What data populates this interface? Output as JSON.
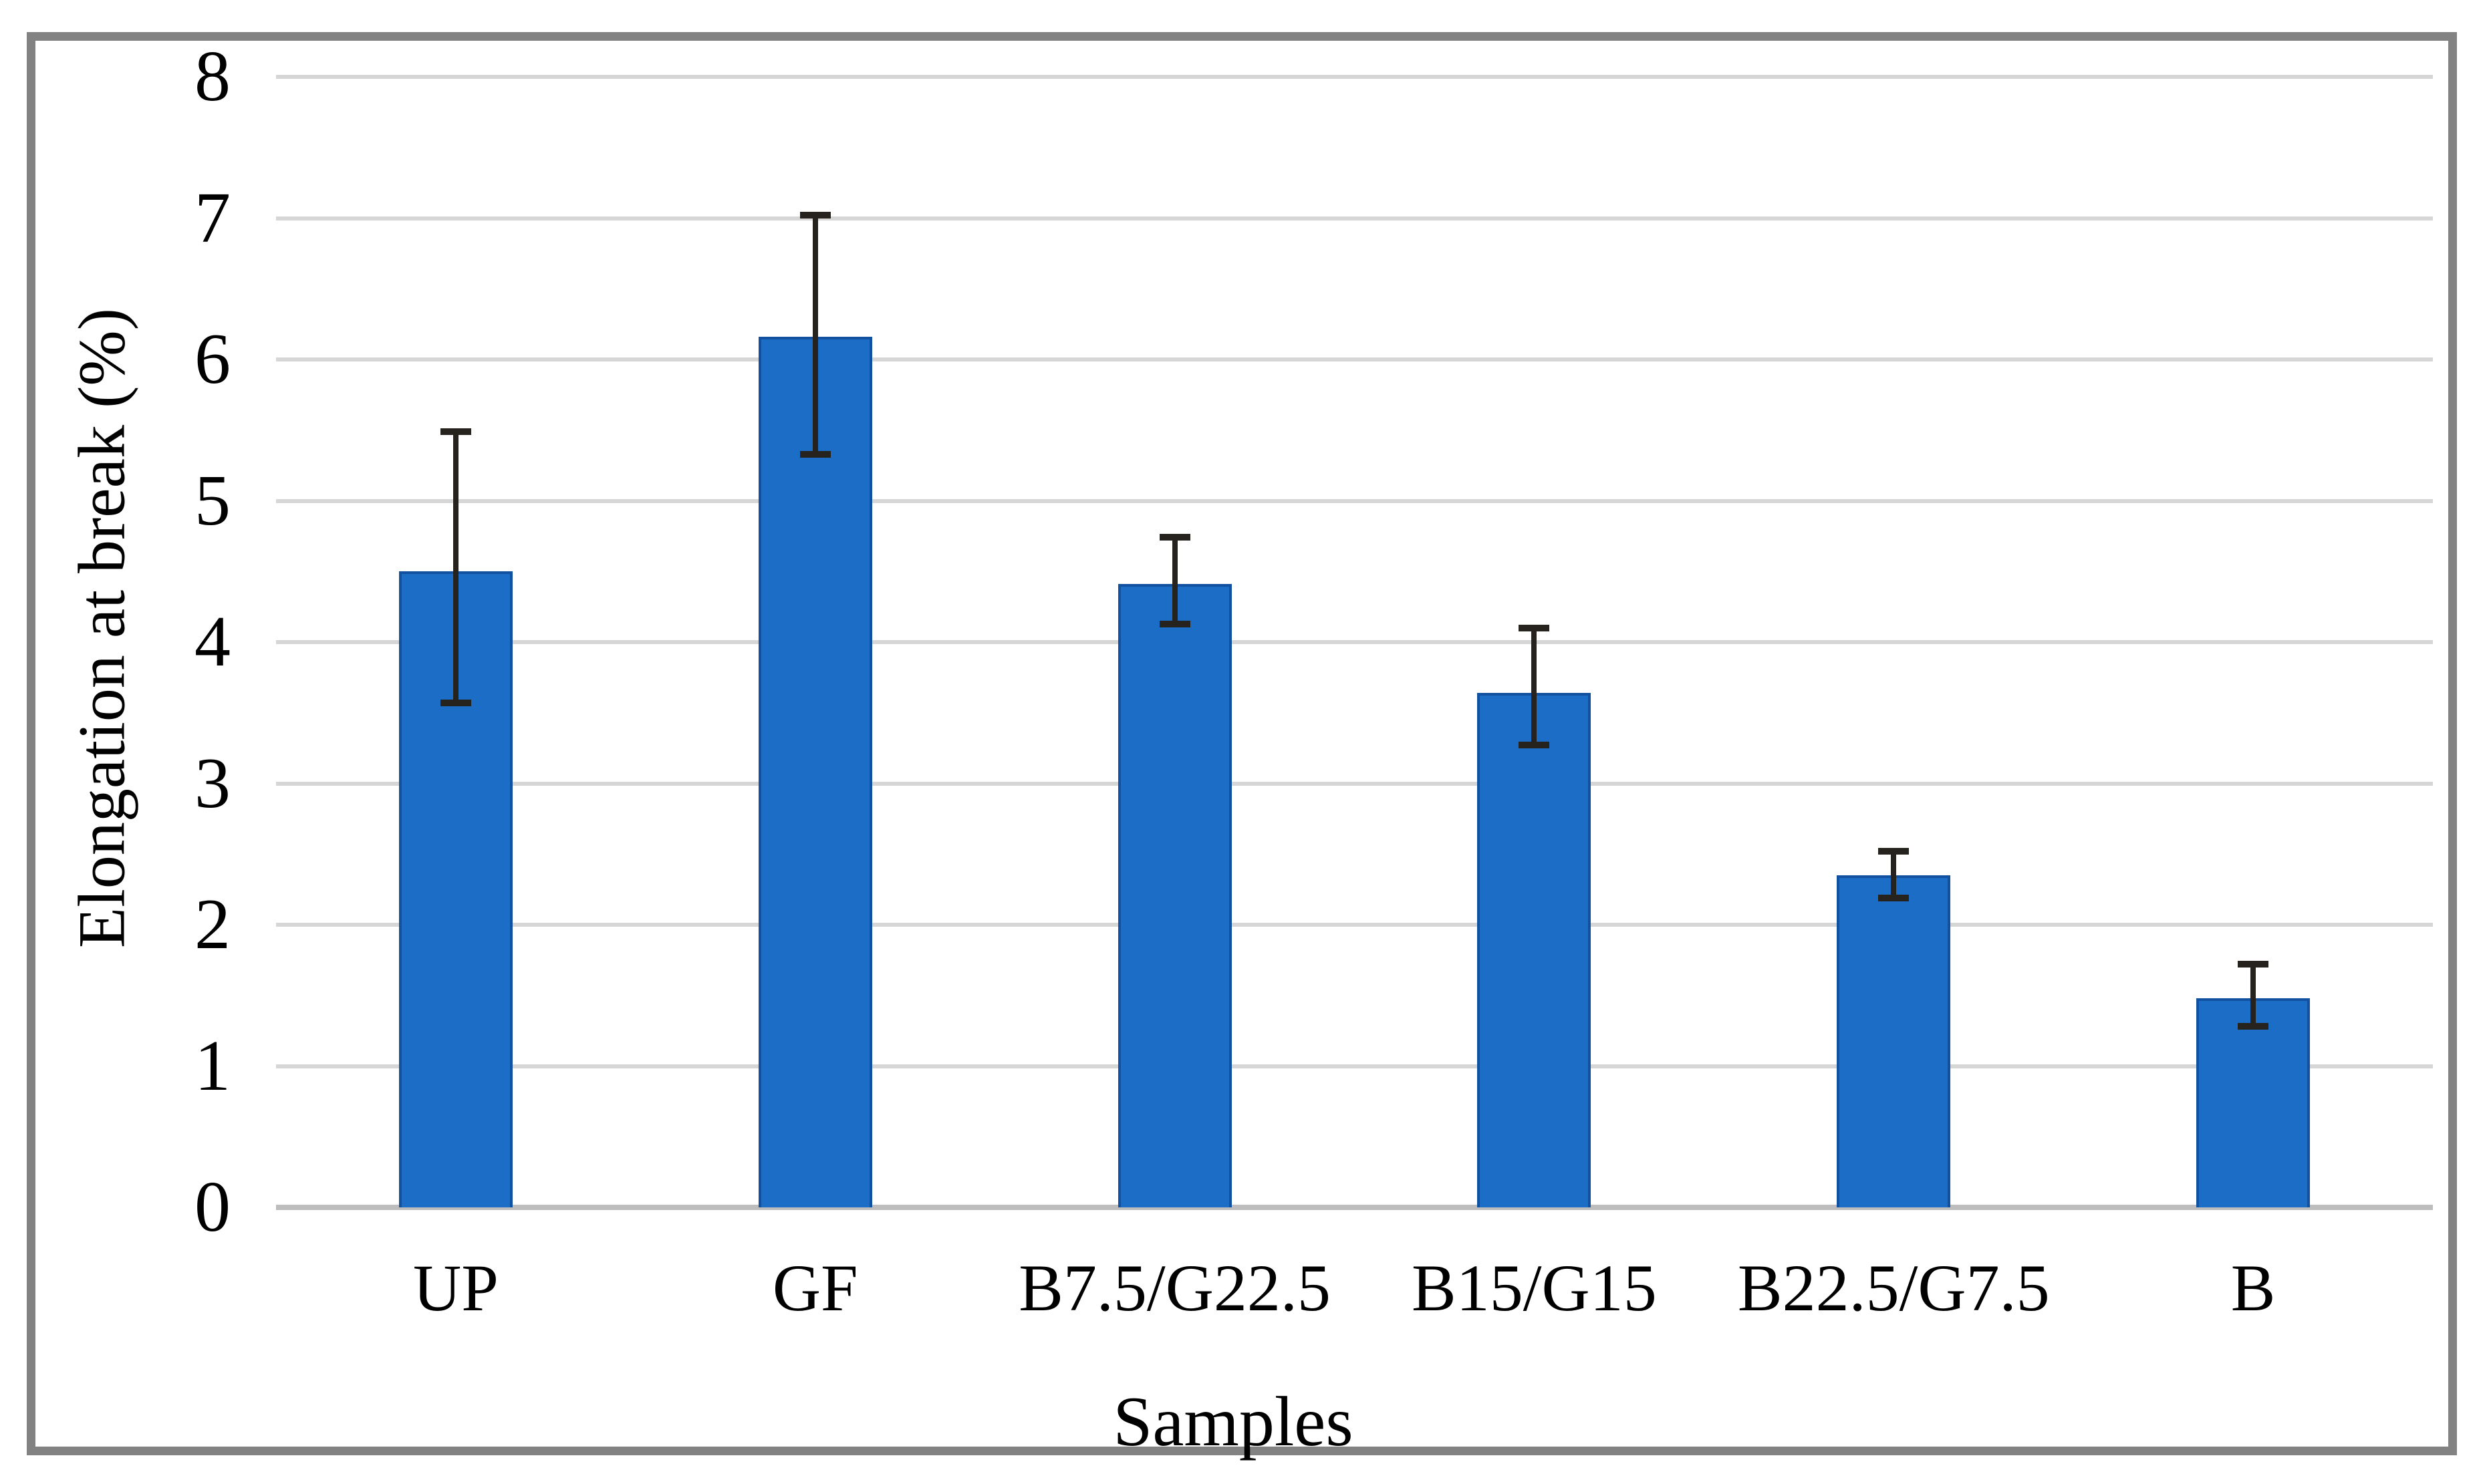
{
  "chart_data": {
    "type": "bar",
    "title": "",
    "xlabel": "Samples",
    "ylabel": "Elongation at break (%)",
    "categories": [
      "UP",
      "GF",
      "B7.5/G22.5",
      "B15/G15",
      "B22.5/G7.5",
      "B"
    ],
    "values": [
      4.5,
      6.16,
      4.41,
      3.64,
      2.35,
      1.48
    ],
    "error_up": [
      0.99,
      0.86,
      0.33,
      0.46,
      0.17,
      0.24
    ],
    "error_down": [
      0.93,
      0.83,
      0.28,
      0.37,
      0.16,
      0.2
    ],
    "ylim": [
      0,
      8
    ],
    "yticks": [
      0,
      1,
      2,
      3,
      4,
      5,
      6,
      7,
      8
    ],
    "grid": "horizontal",
    "legend_position": "none",
    "colors": {
      "bar_fill": "#1b6dc6",
      "bar_border": "#11519f",
      "error_bar": "#26231f",
      "gridline": "#d6d6d6",
      "axis_line": "#bdbdbd",
      "frame_border": "#828282",
      "text": "#000000",
      "background": "#ffffff"
    }
  }
}
